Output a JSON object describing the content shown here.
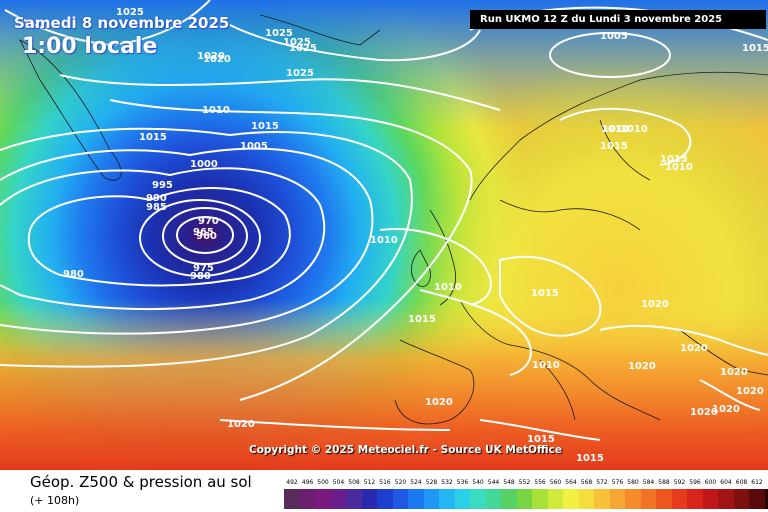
{
  "header": {
    "date": "Samedi 8 novembre 2025",
    "time": "1:00 locale",
    "run": "Run UKMO 12 Z du Lundi 3 novembre 2025"
  },
  "copyright": "Copyright © 2025 Meteociel.fr - Source UK MetOffice",
  "footer": {
    "title": "Géop. Z500 & pression au sol",
    "subtitle": "(+ 108h)"
  },
  "legend": {
    "ticks": [
      "492",
      "496",
      "500",
      "504",
      "508",
      "512",
      "516",
      "520",
      "524",
      "528",
      "532",
      "536",
      "540",
      "544",
      "548",
      "552",
      "556",
      "560",
      "564",
      "568",
      "572",
      "576",
      "580",
      "584",
      "588",
      "592",
      "596",
      "600",
      "604",
      "608",
      "612"
    ],
    "colors": [
      "#5a2a5a",
      "#6a1f6f",
      "#7a1a7e",
      "#6a1e8e",
      "#4a2a9e",
      "#2a2ab0",
      "#1e3ecf",
      "#2058e6",
      "#1a78f0",
      "#1e98f4",
      "#22b6f2",
      "#2ad0e6",
      "#3adcc0",
      "#44d896",
      "#56d264",
      "#78d440",
      "#a8e03a",
      "#d0ea3c",
      "#f2f040",
      "#f6dc3c",
      "#f8c238",
      "#f6a632",
      "#f48c2c",
      "#f27226",
      "#ee5620",
      "#e83a1c",
      "#d8241a",
      "#c01818",
      "#a01414",
      "#7e1010",
      "#5a0a0a",
      "#2a0505"
    ]
  },
  "isobars": {
    "labels": [
      {
        "t": "1025"
      },
      {
        "t": "1025"
      },
      {
        "t": "1025"
      },
      {
        "t": "1025"
      },
      {
        "t": "1025"
      },
      {
        "t": "1020"
      },
      {
        "t": "1015"
      },
      {
        "t": "1015"
      },
      {
        "t": "1015"
      },
      {
        "t": "1005"
      },
      {
        "t": "1000"
      },
      {
        "t": "995"
      },
      {
        "t": "990"
      },
      {
        "t": "985"
      },
      {
        "t": "970"
      },
      {
        "t": "965"
      },
      {
        "t": "960"
      },
      {
        "t": "975"
      },
      {
        "t": "980"
      },
      {
        "t": "980"
      },
      {
        "t": "1010"
      },
      {
        "t": "1010"
      },
      {
        "t": "1015"
      },
      {
        "t": "1015"
      },
      {
        "t": "1010"
      },
      {
        "t": "1010"
      },
      {
        "t": "1010"
      },
      {
        "t": "1010"
      },
      {
        "t": "1010"
      },
      {
        "t": "1005"
      },
      {
        "t": "1015"
      },
      {
        "t": "1020"
      },
      {
        "t": "1020"
      },
      {
        "t": "1020"
      },
      {
        "t": "1020"
      },
      {
        "t": "1020"
      },
      {
        "t": "1020"
      },
      {
        "t": "1020"
      },
      {
        "t": "1020"
      },
      {
        "t": "1020"
      },
      {
        "t": "1015"
      },
      {
        "t": "1015"
      },
      {
        "t": "1020"
      },
      {
        "t": "1010"
      },
      {
        "t": "1015"
      }
    ]
  }
}
